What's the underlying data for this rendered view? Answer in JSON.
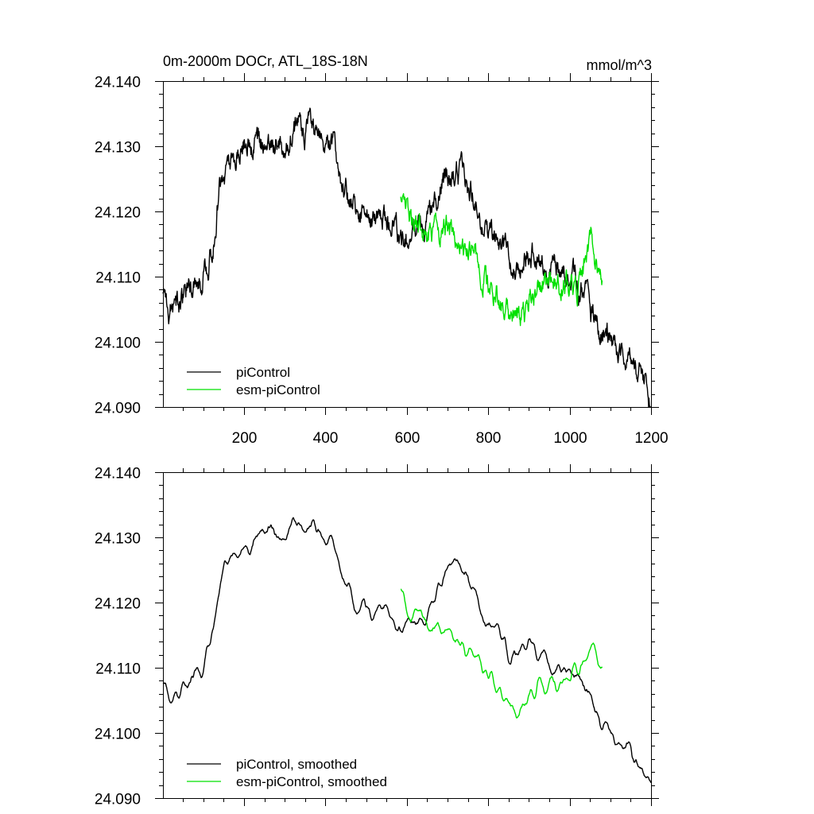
{
  "chart_data": [
    {
      "type": "line",
      "title": "0m-2000m DOCr, ATL_18S-18N",
      "units": "mmol/m^3",
      "xlim": [
        1,
        1200
      ],
      "ylim": [
        24.09,
        24.14
      ],
      "x_ticks": [
        200,
        400,
        600,
        800,
        1000,
        1200
      ],
      "x_tick_labels": [
        "200",
        "400",
        "600",
        "800",
        "1000",
        "1200"
      ],
      "y_ticks": [
        24.09,
        24.1,
        24.11,
        24.12,
        24.13,
        24.14
      ],
      "y_tick_labels": [
        "24.090",
        "24.100",
        "24.110",
        "24.120",
        "24.130",
        "24.140"
      ],
      "legend_position": "bottom-left",
      "smoothed": false,
      "series": [
        {
          "name": "piControl",
          "color": "#000000",
          "anchors": [
            [
              1,
              24.108
            ],
            [
              20,
              24.105
            ],
            [
              40,
              24.106
            ],
            [
              60,
              24.1075
            ],
            [
              80,
              24.109
            ],
            [
              100,
              24.1105
            ],
            [
              120,
              24.114
            ],
            [
              130,
              24.118
            ],
            [
              140,
              24.124
            ],
            [
              160,
              24.127
            ],
            [
              180,
              24.129
            ],
            [
              200,
              24.13
            ],
            [
              220,
              24.1295
            ],
            [
              240,
              24.1295
            ],
            [
              260,
              24.13
            ],
            [
              280,
              24.131
            ],
            [
              300,
              24.1305
            ],
            [
              320,
              24.1315
            ],
            [
              340,
              24.133
            ],
            [
              360,
              24.133
            ],
            [
              380,
              24.1325
            ],
            [
              400,
              24.131
            ],
            [
              420,
              24.1295
            ],
            [
              440,
              24.125
            ],
            [
              460,
              24.122
            ],
            [
              480,
              24.12
            ],
            [
              500,
              24.1195
            ],
            [
              520,
              24.119
            ],
            [
              540,
              24.1195
            ],
            [
              560,
              24.1185
            ],
            [
              580,
              24.116
            ],
            [
              600,
              24.115
            ],
            [
              620,
              24.1165
            ],
            [
              640,
              24.118
            ],
            [
              660,
              24.1205
            ],
            [
              680,
              24.124
            ],
            [
              700,
              24.1255
            ],
            [
              720,
              24.126
            ],
            [
              740,
              24.1245
            ],
            [
              760,
              24.1225
            ],
            [
              780,
              24.12
            ],
            [
              800,
              24.117
            ],
            [
              820,
              24.1155
            ],
            [
              840,
              24.114
            ],
            [
              860,
              24.112
            ],
            [
              880,
              24.1125
            ],
            [
              900,
              24.1135
            ],
            [
              920,
              24.1135
            ],
            [
              940,
              24.1125
            ],
            [
              960,
              24.111
            ],
            [
              980,
              24.11
            ],
            [
              1000,
              24.1095
            ],
            [
              1020,
              24.109
            ],
            [
              1040,
              24.1065
            ],
            [
              1060,
              24.1035
            ],
            [
              1080,
              24.1015
            ],
            [
              1100,
              24.1005
            ],
            [
              1120,
              24.099
            ],
            [
              1140,
              24.097
            ],
            [
              1160,
              24.0955
            ],
            [
              1180,
              24.0935
            ],
            [
              1200,
              24.0905
            ]
          ]
        },
        {
          "name": "esm-piControl",
          "color": "#00e000",
          "anchors": [
            [
              585,
              24.1225
            ],
            [
              600,
              24.1205
            ],
            [
              620,
              24.119
            ],
            [
              640,
              24.1175
            ],
            [
              660,
              24.117
            ],
            [
              680,
              24.1175
            ],
            [
              700,
              24.117
            ],
            [
              720,
              24.1155
            ],
            [
              740,
              24.1145
            ],
            [
              760,
              24.1135
            ],
            [
              780,
              24.1125
            ],
            [
              800,
              24.1095
            ],
            [
              820,
              24.1075
            ],
            [
              840,
              24.106
            ],
            [
              860,
              24.1035
            ],
            [
              880,
              24.104
            ],
            [
              900,
              24.1065
            ],
            [
              920,
              24.108
            ],
            [
              940,
              24.1085
            ],
            [
              960,
              24.1085
            ],
            [
              980,
              24.1085
            ],
            [
              1000,
              24.109
            ],
            [
              1020,
              24.1085
            ],
            [
              1040,
              24.1125
            ],
            [
              1050,
              24.1155
            ],
            [
              1060,
              24.114
            ],
            [
              1070,
              24.111
            ],
            [
              1080,
              24.1115
            ]
          ]
        }
      ]
    },
    {
      "type": "line",
      "title": "",
      "units": "",
      "xlim": [
        1,
        1200
      ],
      "ylim": [
        24.09,
        24.14
      ],
      "x_ticks": [
        200,
        400,
        600,
        800,
        1000,
        1200
      ],
      "x_tick_labels": [],
      "y_ticks": [
        24.09,
        24.1,
        24.11,
        24.12,
        24.13,
        24.14
      ],
      "y_tick_labels": [
        "24.090",
        "24.100",
        "24.110",
        "24.120",
        "24.130",
        "24.140"
      ],
      "legend_position": "bottom-left",
      "smoothed": true,
      "series": [
        {
          "name": "piControl, smoothed",
          "color": "#000000",
          "anchors": [
            [
              1,
              24.107
            ],
            [
              20,
              24.1055
            ],
            [
              40,
              24.1055
            ],
            [
              60,
              24.1075
            ],
            [
              80,
              24.109
            ],
            [
              100,
              24.1105
            ],
            [
              120,
              24.114
            ],
            [
              130,
              24.118
            ],
            [
              140,
              24.1235
            ],
            [
              160,
              24.1265
            ],
            [
              180,
              24.1285
            ],
            [
              200,
              24.1295
            ],
            [
              220,
              24.129
            ],
            [
              240,
              24.1295
            ],
            [
              260,
              24.1305
            ],
            [
              280,
              24.1305
            ],
            [
              300,
              24.13
            ],
            [
              320,
              24.131
            ],
            [
              340,
              24.1325
            ],
            [
              360,
              24.1325
            ],
            [
              380,
              24.132
            ],
            [
              400,
              24.1305
            ],
            [
              420,
              24.129
            ],
            [
              440,
              24.1245
            ],
            [
              460,
              24.1215
            ],
            [
              480,
              24.1195
            ],
            [
              500,
              24.1195
            ],
            [
              520,
              24.119
            ],
            [
              540,
              24.119
            ],
            [
              560,
              24.118
            ],
            [
              580,
              24.1165
            ],
            [
              600,
              24.1155
            ],
            [
              620,
              24.1165
            ],
            [
              640,
              24.118
            ],
            [
              660,
              24.12
            ],
            [
              680,
              24.1235
            ],
            [
              700,
              24.1245
            ],
            [
              720,
              24.125
            ],
            [
              740,
              24.124
            ],
            [
              760,
              24.1225
            ],
            [
              780,
              24.1195
            ],
            [
              800,
              24.117
            ],
            [
              820,
              24.1155
            ],
            [
              840,
              24.1135
            ],
            [
              860,
              24.1115
            ],
            [
              880,
              24.112
            ],
            [
              900,
              24.113
            ],
            [
              920,
              24.113
            ],
            [
              940,
              24.112
            ],
            [
              960,
              24.1105
            ],
            [
              980,
              24.11
            ],
            [
              1000,
              24.109
            ],
            [
              1020,
              24.1085
            ],
            [
              1040,
              24.1065
            ],
            [
              1060,
              24.1035
            ],
            [
              1080,
              24.1015
            ],
            [
              1100,
              24.1005
            ],
            [
              1120,
              24.099
            ],
            [
              1140,
              24.0975
            ],
            [
              1160,
              24.0955
            ],
            [
              1180,
              24.0935
            ],
            [
              1200,
              24.091
            ]
          ]
        },
        {
          "name": "esm-piControl, smoothed",
          "color": "#00e000",
          "anchors": [
            [
              585,
              24.122
            ],
            [
              600,
              24.1195
            ],
            [
              620,
              24.1185
            ],
            [
              640,
              24.117
            ],
            [
              660,
              24.1165
            ],
            [
              680,
              24.117
            ],
            [
              700,
              24.1165
            ],
            [
              720,
              24.115
            ],
            [
              740,
              24.114
            ],
            [
              760,
              24.113
            ],
            [
              780,
              24.112
            ],
            [
              800,
              24.1095
            ],
            [
              820,
              24.1075
            ],
            [
              840,
              24.106
            ],
            [
              860,
              24.104
            ],
            [
              880,
              24.104
            ],
            [
              900,
              24.106
            ],
            [
              920,
              24.1075
            ],
            [
              940,
              24.108
            ],
            [
              960,
              24.108
            ],
            [
              980,
              24.108
            ],
            [
              1000,
              24.1085
            ],
            [
              1020,
              24.1085
            ],
            [
              1040,
              24.1115
            ],
            [
              1050,
              24.1145
            ],
            [
              1060,
              24.114
            ],
            [
              1070,
              24.111
            ],
            [
              1080,
              24.1105
            ]
          ]
        }
      ]
    }
  ]
}
